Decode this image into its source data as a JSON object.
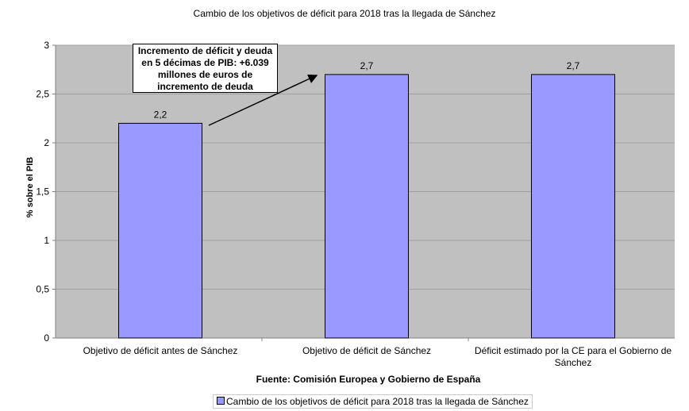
{
  "chart_data": {
    "type": "bar",
    "title": "Cambio de los objetivos de déficit para 2018 tras la llegada de Sánchez",
    "categories": [
      "Objetivo de déficit antes de Sánchez",
      "Objetivo de déficit de Sánchez",
      "Déficit estimado por la CE para el Gobierno de Sánchez"
    ],
    "series": [
      {
        "name": "Cambio de los objetivos de déficit para 2018 tras la llegada de Sánchez",
        "values": [
          2.2,
          2.7,
          2.7
        ],
        "labels": [
          "2,2",
          "2,7",
          "2,7"
        ]
      }
    ],
    "xlabel": "Fuente: Comisión Europea y Gobierno de España",
    "ylabel": "% sobre el PIB",
    "ylim": [
      0,
      3
    ],
    "yticks": [
      "0",
      "0,5",
      "1",
      "1,5",
      "2",
      "2,5",
      "3"
    ],
    "grid": true,
    "legend": "bottom",
    "annotation": "Incremento de déficit y deuda en 5 décimas de PIB: +6.039 millones de euros de incremento de deuda",
    "colors": {
      "bar": "#9999ff",
      "plot_bg": "#c0c0c0",
      "grid": "#a0a0a0"
    }
  }
}
